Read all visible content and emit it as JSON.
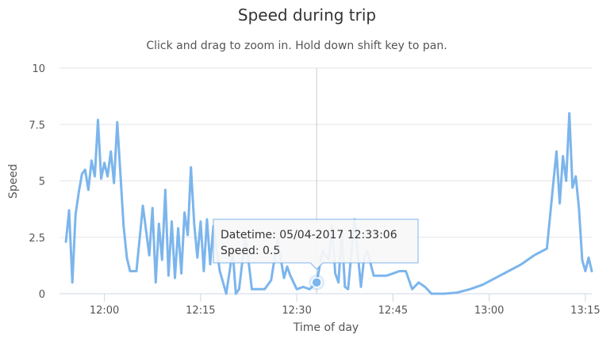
{
  "chart_data": {
    "type": "line",
    "title": "Speed during trip",
    "subtitle": "Click and drag to zoom in. Hold down shift key to pan.",
    "xlabel": "Time of day",
    "ylabel": "Speed",
    "ylim": [
      0,
      10
    ],
    "xlim": [
      "11:53",
      "13:16"
    ],
    "yticks": [
      {
        "value": 0,
        "label": "0"
      },
      {
        "value": 2.5,
        "label": "2.5"
      },
      {
        "value": 5,
        "label": "5"
      },
      {
        "value": 7.5,
        "label": "7.5"
      },
      {
        "value": 10,
        "label": "10"
      }
    ],
    "xticks": [
      {
        "value": "12:00",
        "label": "12:00"
      },
      {
        "value": "12:15",
        "label": "12:15"
      },
      {
        "value": "12:30",
        "label": "12:30"
      },
      {
        "value": "12:45",
        "label": "12:45"
      },
      {
        "value": "13:00",
        "label": "13:00"
      },
      {
        "value": "13:15",
        "label": "13:15"
      }
    ],
    "grid": true,
    "legend": "none",
    "series": [
      {
        "color": "#7cb5ec",
        "x": [
          "11:54",
          "11:54.5",
          "11:55",
          "11:55.5",
          "11:56",
          "11:56.5",
          "11:57",
          "11:57.5",
          "11:58",
          "11:58.5",
          "11:59",
          "11:59.5",
          "12:00",
          "12:00.5",
          "12:01",
          "12:01.5",
          "12:02",
          "12:02.5",
          "12:03",
          "12:03.5",
          "12:04",
          "12:05",
          "12:06",
          "12:07",
          "12:07.5",
          "12:08",
          "12:08.5",
          "12:09",
          "12:09.5",
          "12:10",
          "12:10.5",
          "12:11",
          "12:11.5",
          "12:12",
          "12:12.5",
          "12:13",
          "12:13.5",
          "12:14",
          "12:14.5",
          "12:15",
          "12:15.5",
          "12:16",
          "12:16.5",
          "12:17",
          "12:18",
          "12:19",
          "12:20",
          "12:20.5",
          "12:21",
          "12:22",
          "12:23",
          "12:24",
          "12:25",
          "12:26",
          "12:27",
          "12:28",
          "12:28.5",
          "12:29",
          "12:29.5",
          "12:30",
          "12:31",
          "12:32",
          "12:33.1",
          "12:34",
          "12:35",
          "12:35.5",
          "12:36",
          "12:36.5",
          "12:37",
          "12:37.5",
          "12:38",
          "12:39",
          "12:40",
          "12:40.5",
          "12:41",
          "12:42",
          "12:43",
          "12:44",
          "12:45",
          "12:46",
          "12:47",
          "12:48",
          "12:49",
          "12:50",
          "12:51",
          "12:52",
          "12:53",
          "12:55",
          "12:57",
          "12:59",
          "13:01",
          "13:03",
          "13:05",
          "13:07",
          "13:09",
          "13:10",
          "13:10.5",
          "13:11",
          "13:11.5",
          "13:12",
          "13:12.5",
          "13:13",
          "13:13.5",
          "13:14",
          "13:14.5",
          "13:15",
          "13:15.5",
          "13:16"
        ],
        "y": [
          2.3,
          3.7,
          0.5,
          3.5,
          4.5,
          5.3,
          5.5,
          4.6,
          5.9,
          5.2,
          7.7,
          5.1,
          5.8,
          5.2,
          6.3,
          4.9,
          7.6,
          5.3,
          3.0,
          1.6,
          1.0,
          1.0,
          3.9,
          1.7,
          3.8,
          0.5,
          3.1,
          1.5,
          4.6,
          0.8,
          3.2,
          0.7,
          2.9,
          0.9,
          3.6,
          2.6,
          5.6,
          3.1,
          1.6,
          3.2,
          1.0,
          3.3,
          1.3,
          3.0,
          1.0,
          0.0,
          1.9,
          0.0,
          0.2,
          2.6,
          0.2,
          0.2,
          0.2,
          0.6,
          2.4,
          0.7,
          1.2,
          0.8,
          0.5,
          0.2,
          0.3,
          0.2,
          0.5,
          1.9,
          1.5,
          3.0,
          0.9,
          0.5,
          2.8,
          0.3,
          0.2,
          3.3,
          0.3,
          1.6,
          1.9,
          0.8,
          0.8,
          0.8,
          0.9,
          1.0,
          1.0,
          0.2,
          0.5,
          0.3,
          0.0,
          0.0,
          0.0,
          0.05,
          0.2,
          0.4,
          0.7,
          1.0,
          1.3,
          1.7,
          2.0,
          4.9,
          6.3,
          4.0,
          6.1,
          5.0,
          8.0,
          4.7,
          5.2,
          3.8,
          1.5,
          1.0,
          1.6,
          1.0
        ]
      }
    ],
    "tooltip": {
      "datetime_line": "Datetime: 05/04-2017 12:33:06",
      "speed_line": "Speed: 0.5",
      "x": "12:33.1",
      "y": 0.5
    }
  }
}
